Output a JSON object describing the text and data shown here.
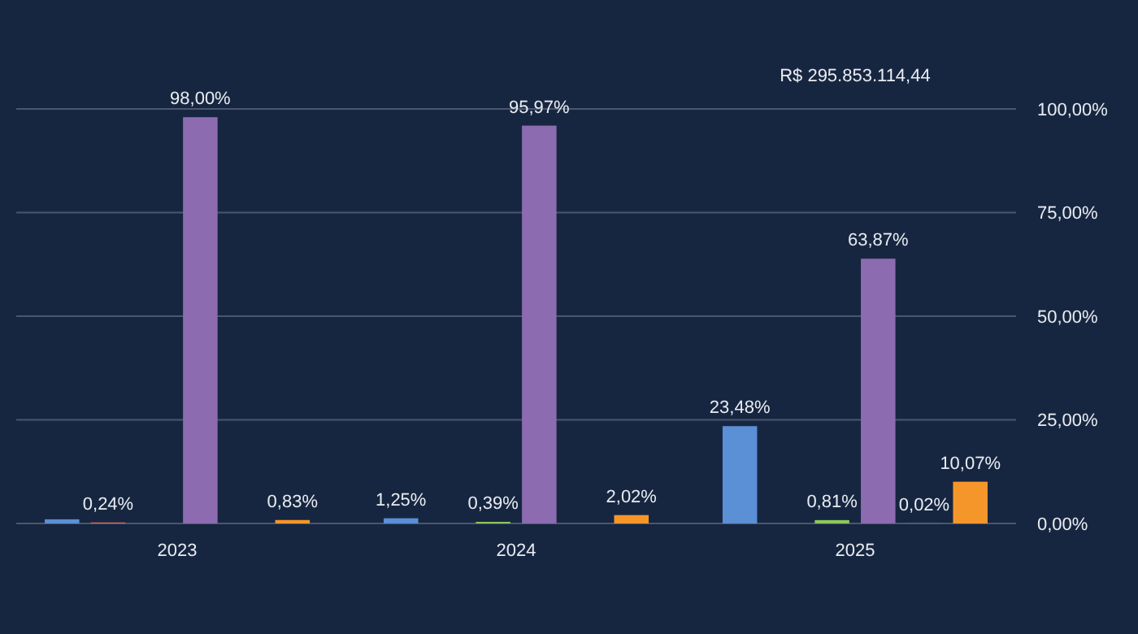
{
  "chart_data": {
    "type": "bar",
    "categories": [
      "2023",
      "2024",
      "2025"
    ],
    "series": [
      {
        "color": "#5b8fd6",
        "values": [
          1,
          1.25,
          23.48
        ],
        "value_labels": [
          null,
          "1,25%",
          "23,48%"
        ]
      },
      {
        "color": "#d96b5b",
        "values": [
          0.24,
          null,
          null
        ],
        "value_labels": [
          "0,24%",
          null,
          null
        ]
      },
      {
        "color": "#8fc75a",
        "values": [
          null,
          0.39,
          0.81
        ],
        "value_labels": [
          null,
          "0,39%",
          "0,81%"
        ]
      },
      {
        "color": "#8c6bb1",
        "values": [
          98.0,
          95.97,
          63.87
        ],
        "value_labels": [
          "98,00%",
          "95,97%",
          "63,87%"
        ]
      },
      {
        "color": "#4fb8d8",
        "values": [
          null,
          null,
          0.02
        ],
        "value_labels": [
          null,
          null,
          "0,02%"
        ]
      },
      {
        "color": "#f5962a",
        "values": [
          0.83,
          2.02,
          10.07
        ],
        "value_labels": [
          "0,83%",
          "2,02%",
          "10,07%"
        ]
      }
    ],
    "ylim": [
      0,
      100
    ],
    "yticks": [
      {
        "value": 0,
        "label": "0,00%"
      },
      {
        "value": 25,
        "label": "25,00%"
      },
      {
        "value": 50,
        "label": "50,00%"
      },
      {
        "value": 75,
        "label": "75,00%"
      },
      {
        "value": 100,
        "label": "100,00%"
      }
    ],
    "grid": "y",
    "annotations": [
      "R$ 295.853.114,44"
    ]
  }
}
